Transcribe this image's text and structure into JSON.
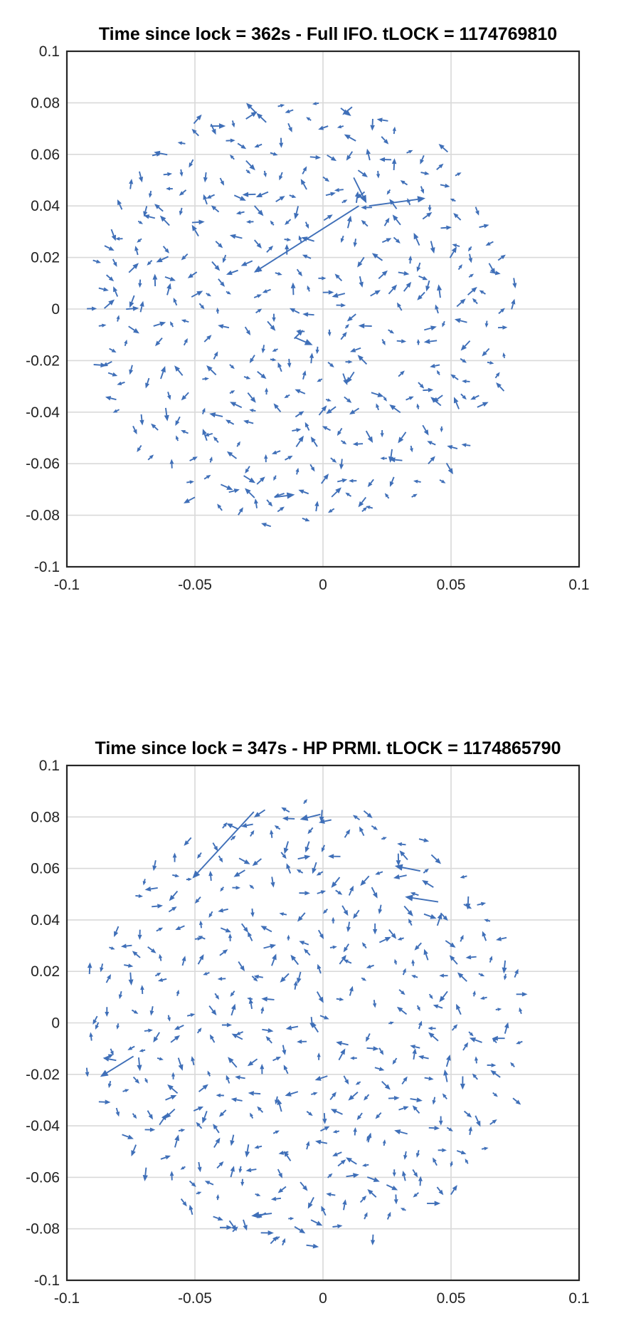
{
  "chart_data": [
    {
      "type": "quiver",
      "title": "Time since lock = 362s -  Full IFO. tLOCK = 1174769810",
      "xlim": [
        -0.1,
        0.1
      ],
      "ylim": [
        -0.1,
        0.1
      ],
      "xticks": [
        -0.1,
        -0.05,
        0,
        0.05,
        0.1
      ],
      "yticks": [
        -0.1,
        -0.08,
        -0.06,
        -0.04,
        -0.02,
        0,
        0.02,
        0.04,
        0.06,
        0.08,
        0.1
      ],
      "xtick_labels": [
        "-0.1",
        "-0.05",
        "0",
        "0.05",
        "0.1"
      ],
      "ytick_labels": [
        "-0.1",
        "-0.08",
        "-0.06",
        "-0.04",
        "-0.02",
        "0",
        "0.02",
        "0.04",
        "0.06",
        "0.08",
        "0.1"
      ],
      "grid": true,
      "color": "#3f6fb8",
      "field_region": {
        "center": [
          -0.008,
          -0.001
        ],
        "radius": 0.085
      },
      "large_arrows": [
        {
          "x": 0.014,
          "y": 0.04,
          "u": -0.041,
          "v": -0.026
        },
        {
          "x": 0.018,
          "y": 0.04,
          "u": 0.022,
          "v": 0.003
        },
        {
          "x": 0.012,
          "y": 0.051,
          "u": 0.005,
          "v": -0.01
        },
        {
          "x": -0.044,
          "y": 0.071,
          "u": 0.006,
          "v": 0.0
        },
        {
          "x": -0.026,
          "y": 0.076,
          "u": -0.004,
          "v": 0.004
        },
        {
          "x": -0.019,
          "y": -0.073,
          "u": 0.008,
          "v": 0.001
        },
        {
          "x": -0.011,
          "y": -0.011,
          "u": 0.007,
          "v": -0.003
        }
      ]
    },
    {
      "type": "quiver",
      "title": "Time since lock = 347s -  HP PRMI. tLOCK = 1174865790",
      "xlim": [
        -0.1,
        0.1
      ],
      "ylim": [
        -0.1,
        0.1
      ],
      "xticks": [
        -0.1,
        -0.05,
        0,
        0.05,
        0.1
      ],
      "yticks": [
        -0.1,
        -0.08,
        -0.06,
        -0.04,
        -0.02,
        0,
        0.02,
        0.04,
        0.06,
        0.08,
        0.1
      ],
      "xtick_labels": [
        "-0.1",
        "-0.05",
        "0",
        "0.05",
        "0.1"
      ],
      "ytick_labels": [
        "-0.1",
        "-0.08",
        "-0.06",
        "-0.04",
        "-0.02",
        "0",
        "0.02",
        "0.04",
        "0.06",
        "0.08",
        "0.1"
      ],
      "grid": true,
      "color": "#3f6fb8",
      "field_region": {
        "center": [
          -0.007,
          -0.001
        ],
        "radius": 0.087
      },
      "large_arrows": [
        {
          "x": -0.027,
          "y": 0.082,
          "u": -0.024,
          "v": -0.026
        },
        {
          "x": -0.074,
          "y": -0.013,
          "u": -0.013,
          "v": -0.008
        },
        {
          "x": 0.045,
          "y": 0.047,
          "u": -0.013,
          "v": 0.002
        },
        {
          "x": 0.038,
          "y": 0.059,
          "u": -0.01,
          "v": 0.002
        },
        {
          "x": -0.02,
          "y": -0.074,
          "u": -0.008,
          "v": -0.001
        },
        {
          "x": -0.001,
          "y": 0.081,
          "u": -0.008,
          "v": -0.002
        },
        {
          "x": 0.071,
          "y": -0.006,
          "u": -0.005,
          "v": 0.0
        }
      ]
    }
  ]
}
